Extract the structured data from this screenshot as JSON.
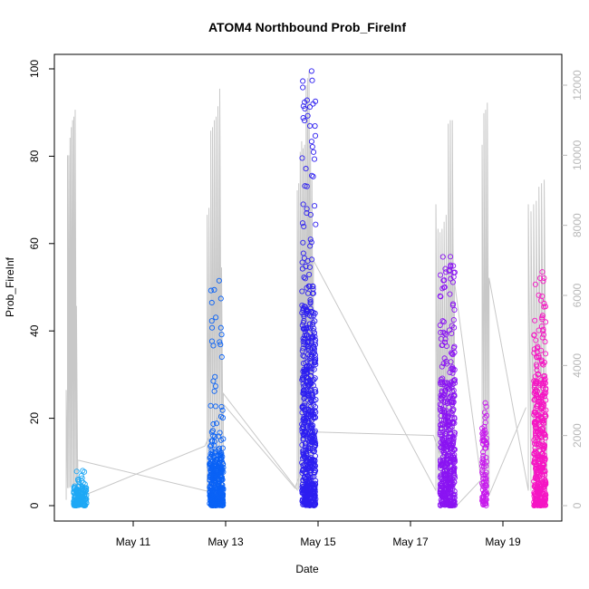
{
  "chart_data": {
    "type": "scatter",
    "title": "ATOM4 Northbound Prob_FireInf",
    "xlabel": "Date",
    "ylabel": "Prob_FireInf",
    "ylim": [
      0,
      100
    ],
    "y_ticks": [
      0,
      20,
      40,
      60,
      80,
      100
    ],
    "xlim": [
      9.4,
      19.9
    ],
    "x_ticks": [
      {
        "value": 11,
        "label": "May 11"
      },
      {
        "value": 13,
        "label": "May 13"
      },
      {
        "value": 15,
        "label": "May 15"
      },
      {
        "value": 17,
        "label": "May 17"
      },
      {
        "value": 19,
        "label": "May 19"
      }
    ],
    "y2lim": [
      0,
      12500
    ],
    "y2_ticks": [
      0,
      2000,
      4000,
      6000,
      8000,
      10000,
      12000
    ],
    "colors": {
      "secondary_line": "#c8c8c8",
      "secondary_axis": "#b8b8b8"
    },
    "series": [
      {
        "day": 9.85,
        "spread": 0.14,
        "color": "#1fa8f5",
        "max": 8,
        "typical": 2,
        "count": 160
      },
      {
        "day": 12.8,
        "spread": 0.15,
        "color": "#0a62f6",
        "max": 51.5,
        "typical": 6,
        "count": 380
      },
      {
        "day": 14.8,
        "spread": 0.15,
        "color": "#2d1ff0",
        "max": 99.5,
        "typical": 22,
        "count": 620
      },
      {
        "day": 17.8,
        "spread": 0.16,
        "color": "#8a14f2",
        "max": 57,
        "typical": 14,
        "count": 480
      },
      {
        "day": 18.6,
        "spread": 0.05,
        "color": "#c71cec",
        "max": 23.5,
        "typical": 8,
        "count": 90
      },
      {
        "day": 19.8,
        "spread": 0.13,
        "color": "#f516c4",
        "max": 53.5,
        "typical": 14,
        "count": 420
      }
    ],
    "secondary_series": {
      "bursts": [
        {
          "start": 9.55,
          "end": 9.8,
          "peaks": [
            3300,
            10000,
            10000,
            10500,
            10800,
            11000,
            11100,
            11300,
            5700,
            1300
          ]
        },
        {
          "start": 12.6,
          "end": 12.95,
          "peaks": [
            8300,
            8500,
            10700,
            10800,
            11000,
            11100,
            11400,
            11900,
            6800,
            3200
          ]
        },
        {
          "start": 14.55,
          "end": 14.9,
          "peaks": [
            9000,
            9200,
            10100,
            10400,
            10200,
            10300,
            12000,
            12200,
            12400,
            10300,
            9300,
            7000
          ]
        },
        {
          "start": 17.55,
          "end": 17.95,
          "peaks": [
            8600,
            7900,
            7800,
            7900,
            8100,
            8300,
            10900,
            11000,
            11000,
            6400
          ]
        },
        {
          "start": 18.55,
          "end": 18.7,
          "peaks": [
            10300,
            11200,
            11300,
            11500,
            6500
          ]
        },
        {
          "start": 19.55,
          "end": 19.95,
          "peaks": [
            8600,
            8400,
            8600,
            8700,
            9100,
            9200,
            9300,
            2600
          ]
        }
      ],
      "connectors": [
        [
          9.95,
          300
        ],
        [
          12.55,
          1700
        ],
        [
          12.95,
          2900
        ],
        [
          14.5,
          500
        ],
        [
          14.95,
          2100
        ],
        [
          17.5,
          2000
        ],
        [
          18.0,
          0
        ],
        [
          18.5,
          700
        ],
        [
          18.7,
          300
        ],
        [
          19.5,
          2800
        ]
      ]
    }
  }
}
